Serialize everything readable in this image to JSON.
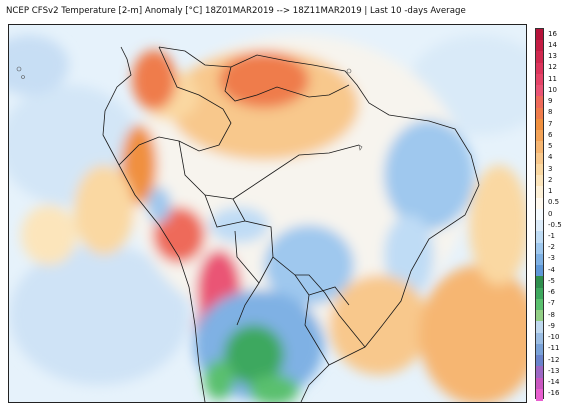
{
  "title": "NCEP CFSv2 Temperature [2-m] Anomaly  [°C] 18Z01MAR2019 --> 18Z11MAR2019 | Last 10 -days Average",
  "colorbar": {
    "labels": [
      "16",
      "14",
      "13",
      "12",
      "11",
      "10",
      "9",
      "8",
      "7",
      "6",
      "5",
      "4",
      "3",
      "2",
      "1",
      "0.5",
      "0",
      "-0.5",
      "-1",
      "-2",
      "-3",
      "-4",
      "-5",
      "-6",
      "-7",
      "-8",
      "-9",
      "-10",
      "-11",
      "-12",
      "-13",
      "-14",
      "-16"
    ],
    "colors": [
      "#b5133a",
      "#c41d44",
      "#d0294f",
      "#dc355c",
      "#e54468",
      "#ea5475",
      "#ee6a5a",
      "#ef7c4c",
      "#f0903f",
      "#f3a358",
      "#f6b672",
      "#f8c88c",
      "#fad8a2",
      "#fce5bb",
      "#fdf0d6",
      "#fff9ee",
      "#f5fbff",
      "#dcecfa",
      "#bfdcf5",
      "#9fc8ee",
      "#7fb1e4",
      "#5f98d8",
      "#2f8f4e",
      "#3ea85e",
      "#5ac06e",
      "#93cf86",
      "#bfd8ee",
      "#9bbde3",
      "#7aa2d8",
      "#6a83cc",
      "#9c68c4",
      "#c957c0",
      "#e85fcf"
    ]
  }
}
